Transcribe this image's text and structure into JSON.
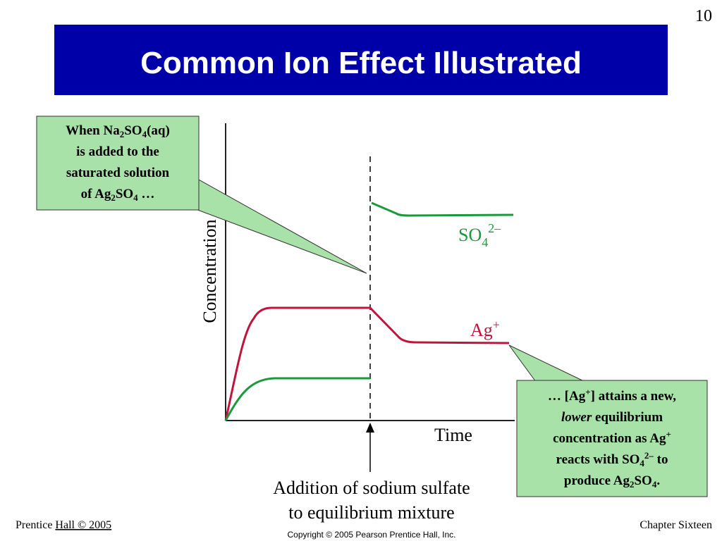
{
  "slide_number": "10",
  "title": "Common Ion Effect Illustrated",
  "callout_left": [
    "When Na",
    "2",
    "SO",
    "4",
    "(aq)",
    "is added to the",
    "saturated solution",
    "of Ag",
    "2",
    "SO",
    "4",
    "…"
  ],
  "chart": {
    "y_axis_label": "Concentration",
    "x_axis_label": "Time",
    "sulfate_label": [
      "SO",
      "4",
      "2–"
    ],
    "silver_label": [
      "Ag",
      "+"
    ],
    "event_label": [
      "Addition of sodium sulfate",
      "to equilibrium mixture"
    ]
  },
  "callout_right": [
    "… [Ag",
    "+",
    "] attains a new,",
    "lower",
    "equilibrium",
    "concentration as Ag",
    "+",
    "reacts with SO",
    "4",
    "2–",
    "to",
    "produce Ag",
    "2",
    "SO",
    "4",
    "."
  ],
  "footer": {
    "left": [
      "Prentice",
      "Hall © 2005"
    ],
    "right": "Chapter Sixteen",
    "copyright": "Copyright © 2005 Pearson Prentice Hall, Inc."
  }
}
